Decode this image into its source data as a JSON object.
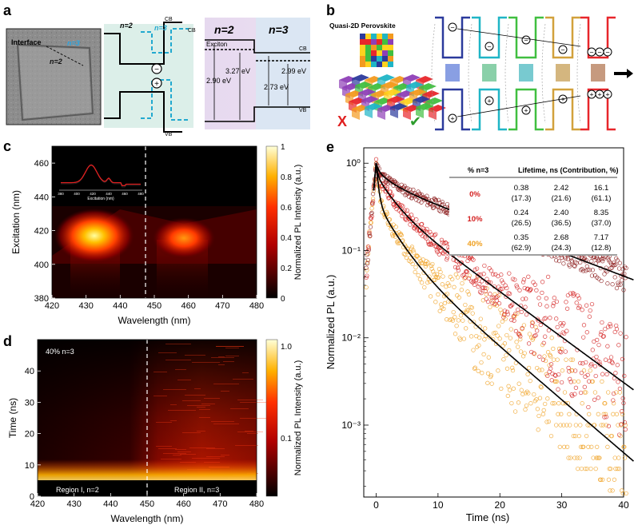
{
  "panels": {
    "a": {
      "label": "a",
      "tem": {
        "interface_label": "Interface",
        "n3_label": "n=3",
        "n2_label": "n=2"
      },
      "schematic": {
        "n2": "n=2",
        "n3": "n=3",
        "cb": "CB",
        "cb2": "CB",
        "vb": "VB",
        "electron": "−",
        "hole": "+"
      },
      "energy": {
        "n2": "n=2",
        "n3": "n=3",
        "exciton": "Exciton",
        "cb": "CB",
        "vb": "VB",
        "e1": "3.27 eV",
        "e2": "2.99 eV",
        "e3": "2.90 eV",
        "e4": "2.73 eV"
      }
    },
    "b": {
      "label": "b",
      "title": "Quasi-2D Perovskite",
      "cross": "X",
      "check": "✔",
      "charges": {
        "e": "−",
        "h": "+"
      },
      "colors": {
        "red": "#e8262b",
        "green": "#40bf40",
        "cyan": "#1fb5c6",
        "blue": "#2b3a9c",
        "orange": "#f39a1e"
      }
    },
    "c": {
      "label": "c",
      "xlabel": "Wavelength (nm)",
      "ylabel": "Excitation (nm)",
      "xticks": [
        "420",
        "430",
        "440",
        "450",
        "460",
        "470",
        "480"
      ],
      "yticks": [
        "380",
        "400",
        "420",
        "440",
        "460"
      ],
      "cbar_label": "Normalized PL Intensity (a.u.)",
      "cbar_ticks": [
        "0",
        "0.2",
        "0.4",
        "0.6",
        "0.8",
        "1"
      ],
      "inset": {
        "xlabel": "Excitation (nm)",
        "xticks": [
          "380",
          "400",
          "420",
          "440",
          "460",
          "480"
        ]
      }
    },
    "d": {
      "label": "d",
      "xlabel": "Wavelength (nm)",
      "ylabel": "Time (ns)",
      "xticks": [
        "420",
        "430",
        "440",
        "450",
        "460",
        "470",
        "480"
      ],
      "yticks": [
        "0",
        "10",
        "20",
        "30",
        "40"
      ],
      "cbar_label": "Normalized PL Intensity (a.u.)",
      "cbar_ticks": [
        "1.0",
        "0.1"
      ],
      "annotation": "40% n=3",
      "region1": "Region I, n=2",
      "region2": "Region II, n=3"
    },
    "e": {
      "label": "e",
      "xlabel": "Time (ns)",
      "ylabel": "Normalized PL (a.u.)",
      "xticks": [
        "0",
        "10",
        "20",
        "30",
        "40"
      ],
      "yticks": [
        "10⁰",
        "10⁻¹",
        "10⁻²",
        "10⁻³"
      ],
      "table": {
        "headers": [
          "% n=3",
          "Lifetime, ns (Contribution, %)"
        ],
        "rows": [
          {
            "label": "0%",
            "color": "#d42020",
            "cells": [
              [
                "0.38",
                "(17.3)"
              ],
              [
                "2.42",
                "(21.6)"
              ],
              [
                "16.1",
                "(61.1)"
              ]
            ]
          },
          {
            "label": "10%",
            "color": "#d42020",
            "cells": [
              [
                "0.24",
                "(26.5)"
              ],
              [
                "2.40",
                "(36.5)"
              ],
              [
                "8.35",
                "(37.0)"
              ]
            ]
          },
          {
            "label": "40%",
            "color": "#f0a020",
            "cells": [
              [
                "0.35",
                "(62.9)"
              ],
              [
                "2.68",
                "(24.3)"
              ],
              [
                "7.17",
                "(12.8)"
              ]
            ]
          }
        ]
      }
    }
  },
  "chart_data": [
    {
      "type": "heatmap",
      "panel": "c",
      "xlabel": "Wavelength (nm)",
      "ylabel": "Excitation (nm)",
      "xlim": [
        420,
        480
      ],
      "ylim": [
        380,
        470
      ],
      "peaks": [
        {
          "x": 436,
          "y": 418,
          "intensity": 1.0
        },
        {
          "x": 462,
          "y": 417,
          "intensity": 0.55
        }
      ],
      "colorbar": {
        "label": "Normalized PL Intensity (a.u.)",
        "range": [
          0,
          1
        ]
      }
    },
    {
      "type": "heatmap",
      "panel": "d",
      "xlabel": "Wavelength (nm)",
      "ylabel": "Time (ns)",
      "xlim": [
        420,
        480
      ],
      "ylim": [
        0,
        50
      ],
      "colorbar": {
        "label": "Normalized PL Intensity (a.u.)",
        "scale": "log"
      }
    },
    {
      "type": "scatter",
      "panel": "e",
      "xlabel": "Time (ns)",
      "ylabel": "Normalized PL (a.u.)",
      "xlim": [
        -2,
        40
      ],
      "ylim": [
        0.00015,
        1.5
      ],
      "yscale": "log",
      "series": [
        {
          "name": "0%",
          "color": "#8b1a1a",
          "taus": [
            0.38,
            2.42,
            16.1
          ],
          "amps": [
            0.173,
            0.216,
            0.611
          ],
          "floor": 0
        },
        {
          "name": "10%",
          "color": "#d42020",
          "taus": [
            0.24,
            2.4,
            8.35
          ],
          "amps": [
            0.265,
            0.365,
            0.37
          ],
          "floor": 0
        },
        {
          "name": "40%",
          "color": "#f0a020",
          "taus": [
            0.35,
            2.68,
            7.17
          ],
          "amps": [
            0.629,
            0.243,
            0.128
          ],
          "floor": 0
        }
      ]
    }
  ]
}
